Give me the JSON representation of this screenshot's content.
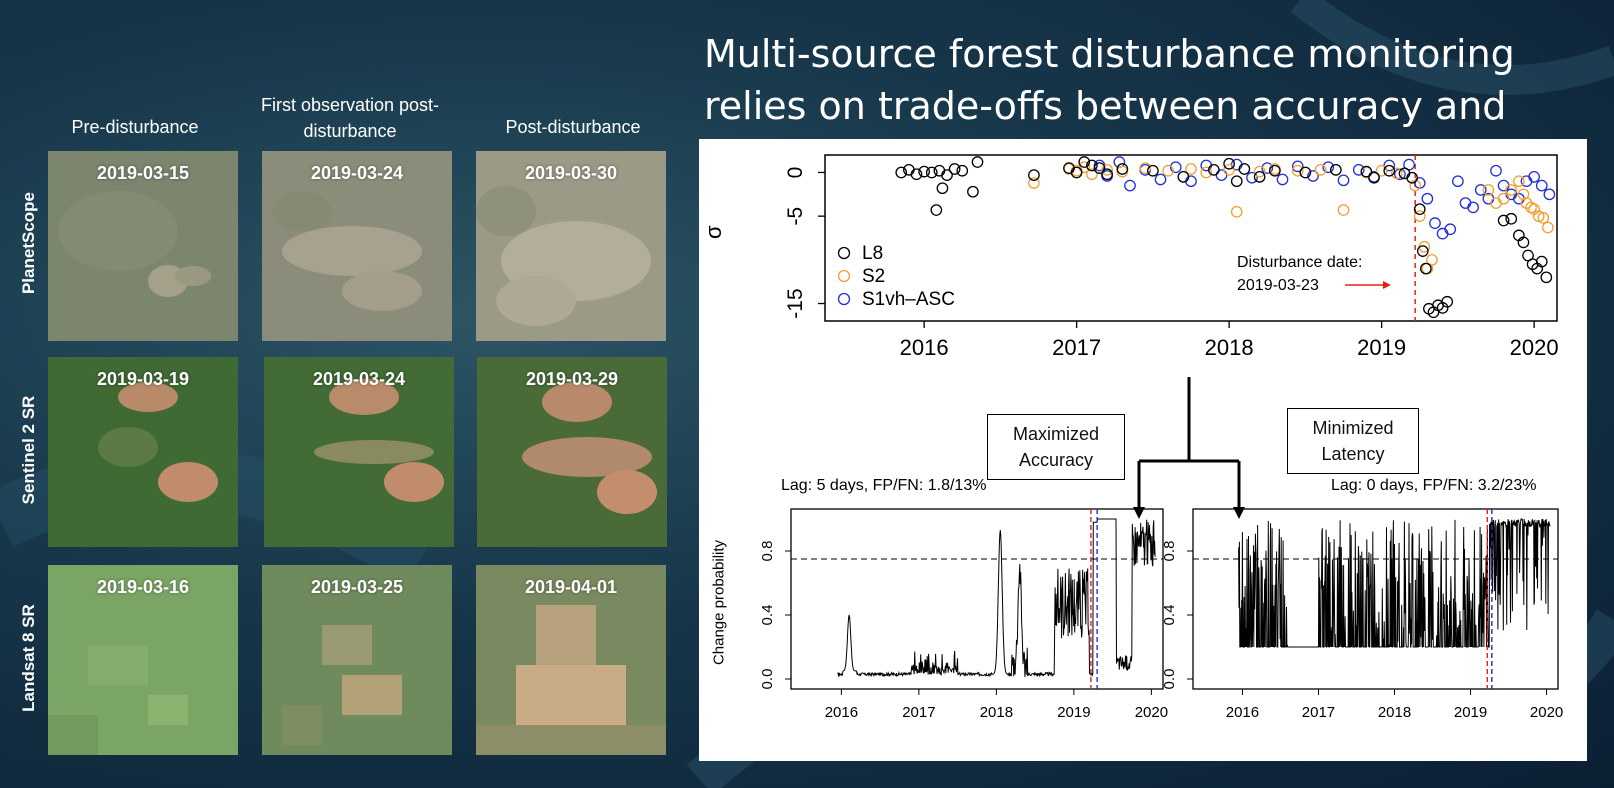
{
  "title": "Multi-source forest disturbance monitoring relies on trade-offs between accuracy and latency",
  "columns": [
    "Pre-disturbance",
    "First observation post-disturbance",
    "Post-disturbance"
  ],
  "rows": [
    "PlanetScope",
    "Sentinel 2 SR",
    "Landsat 8 SR"
  ],
  "tiles": [
    [
      "2019-03-15",
      "2019-03-24",
      "2019-03-30"
    ],
    [
      "2019-03-19",
      "2019-03-24",
      "2019-03-29"
    ],
    [
      "2019-03-16",
      "2019-03-25",
      "2019-04-01"
    ]
  ],
  "colors": {
    "l8": "#000000",
    "s2": "#f0a030",
    "s1": "#1f2fd6",
    "disturbance": "#e0201c"
  },
  "boxes": {
    "accuracy": "Maximized Accuracy",
    "latency": "Minimized Latency"
  },
  "chart_data": [
    {
      "type": "scatter",
      "ylabel": "σ",
      "x_ticks": [
        "2016",
        "2017",
        "2018",
        "2019",
        "2020"
      ],
      "y_ticks": [
        "0",
        "-5",
        "-15"
      ],
      "ylim": [
        -17,
        2
      ],
      "xlim": [
        2015.35,
        2020.15
      ],
      "legend": [
        "L8",
        "S2",
        "S1vh–ASC"
      ],
      "annotation": "Disturbance date: 2019-03-23",
      "disturbance_x": 2019.22,
      "series": [
        {
          "name": "L8",
          "points": [
            [
              2015.85,
              0.0
            ],
            [
              2015.9,
              0.3
            ],
            [
              2015.95,
              -0.2
            ],
            [
              2016.0,
              0.1
            ],
            [
              2016.05,
              0.0
            ],
            [
              2016.1,
              0.2
            ],
            [
              2016.15,
              -0.3
            ],
            [
              2016.2,
              0.4
            ],
            [
              2016.25,
              0.2
            ],
            [
              2016.35,
              1.2
            ],
            [
              2016.08,
              -4.3
            ],
            [
              2016.12,
              -1.8
            ],
            [
              2016.32,
              -2.2
            ],
            [
              2016.72,
              -0.3
            ],
            [
              2016.95,
              0.5
            ],
            [
              2017.0,
              0.0
            ],
            [
              2017.05,
              1.2
            ],
            [
              2017.1,
              0.8
            ],
            [
              2017.15,
              0.5
            ],
            [
              2017.2,
              -0.2
            ],
            [
              2017.3,
              0.4
            ],
            [
              2017.5,
              0.2
            ],
            [
              2017.7,
              -0.5
            ],
            [
              2017.9,
              0.3
            ],
            [
              2018.0,
              1.0
            ],
            [
              2018.05,
              -1.0
            ],
            [
              2018.1,
              0.4
            ],
            [
              2018.2,
              -0.5
            ],
            [
              2018.3,
              0.2
            ],
            [
              2018.5,
              0.0
            ],
            [
              2018.7,
              0.3
            ],
            [
              2018.9,
              0.1
            ],
            [
              2018.95,
              -0.6
            ],
            [
              2019.05,
              0.2
            ],
            [
              2019.15,
              -0.1
            ],
            [
              2019.2,
              -0.6
            ],
            [
              2019.25,
              -4.2
            ],
            [
              2019.27,
              -9.0
            ],
            [
              2019.29,
              -11.0
            ],
            [
              2019.31,
              -15.6
            ],
            [
              2019.34,
              -16.0
            ],
            [
              2019.37,
              -15.2
            ],
            [
              2019.4,
              -15.5
            ],
            [
              2019.43,
              -14.8
            ],
            [
              2019.8,
              -5.5
            ],
            [
              2019.85,
              -5.3
            ],
            [
              2019.9,
              -7.2
            ],
            [
              2019.93,
              -8.0
            ],
            [
              2019.96,
              -9.5
            ],
            [
              2019.99,
              -10.5
            ],
            [
              2020.02,
              -11.0
            ],
            [
              2020.05,
              -10.2
            ],
            [
              2020.08,
              -12.0
            ]
          ]
        },
        {
          "name": "S2",
          "points": [
            [
              2016.72,
              -1.2
            ],
            [
              2016.95,
              0.4
            ],
            [
              2017.0,
              0.2
            ],
            [
              2017.05,
              0.6
            ],
            [
              2017.1,
              -0.2
            ],
            [
              2017.2,
              0.3
            ],
            [
              2017.3,
              0.1
            ],
            [
              2017.45,
              0.5
            ],
            [
              2017.6,
              0.2
            ],
            [
              2017.75,
              0.4
            ],
            [
              2017.85,
              0.0
            ],
            [
              2018.0,
              0.3
            ],
            [
              2018.05,
              -4.5
            ],
            [
              2018.2,
              0.1
            ],
            [
              2018.3,
              0.4
            ],
            [
              2018.45,
              0.2
            ],
            [
              2018.6,
              0.3
            ],
            [
              2018.75,
              -4.3
            ],
            [
              2018.9,
              0.0
            ],
            [
              2019.0,
              0.2
            ],
            [
              2019.1,
              -0.1
            ],
            [
              2019.22,
              -1.5
            ],
            [
              2019.25,
              -5.0
            ],
            [
              2019.28,
              -8.5
            ],
            [
              2019.3,
              -11.0
            ],
            [
              2019.33,
              -10.0
            ],
            [
              2019.7,
              -2.0
            ],
            [
              2019.75,
              -3.5
            ],
            [
              2019.8,
              -3.0
            ],
            [
              2019.85,
              -2.0
            ],
            [
              2019.9,
              -1.0
            ],
            [
              2019.93,
              -2.5
            ],
            [
              2019.95,
              -3.5
            ],
            [
              2019.98,
              -4.0
            ],
            [
              2020.0,
              -4.2
            ],
            [
              2020.03,
              -5.0
            ],
            [
              2020.06,
              -5.2
            ],
            [
              2020.09,
              -6.3
            ]
          ]
        },
        {
          "name": "S1vh–ASC",
          "points": [
            [
              2017.15,
              0.8
            ],
            [
              2017.2,
              -0.4
            ],
            [
              2017.28,
              1.2
            ],
            [
              2017.35,
              -1.5
            ],
            [
              2017.45,
              0.3
            ],
            [
              2017.55,
              -0.8
            ],
            [
              2017.65,
              0.6
            ],
            [
              2017.75,
              -1.0
            ],
            [
              2017.85,
              0.8
            ],
            [
              2017.95,
              -0.3
            ],
            [
              2018.05,
              0.9
            ],
            [
              2018.15,
              -0.6
            ],
            [
              2018.25,
              0.5
            ],
            [
              2018.35,
              -0.8
            ],
            [
              2018.45,
              0.7
            ],
            [
              2018.55,
              -0.4
            ],
            [
              2018.65,
              0.6
            ],
            [
              2018.75,
              -0.9
            ],
            [
              2018.85,
              0.3
            ],
            [
              2018.95,
              -0.5
            ],
            [
              2019.05,
              0.8
            ],
            [
              2019.12,
              -0.2
            ],
            [
              2019.18,
              0.9
            ],
            [
              2019.25,
              -1.2
            ],
            [
              2019.3,
              -3.0
            ],
            [
              2019.35,
              -5.8
            ],
            [
              2019.4,
              -7.0
            ],
            [
              2019.45,
              -6.5
            ],
            [
              2019.5,
              -1.0
            ],
            [
              2019.55,
              -3.5
            ],
            [
              2019.6,
              -4.0
            ],
            [
              2019.65,
              -2.0
            ],
            [
              2019.7,
              -3.0
            ],
            [
              2019.75,
              0.2
            ],
            [
              2019.8,
              -1.5
            ],
            [
              2019.85,
              -2.5
            ],
            [
              2019.9,
              -3.0
            ],
            [
              2019.95,
              -1.0
            ],
            [
              2020.0,
              -0.5
            ],
            [
              2020.05,
              -1.5
            ],
            [
              2020.1,
              -2.5
            ]
          ]
        }
      ]
    },
    {
      "type": "line",
      "label": "Lag: 5 days, FP/FN: 1.8/13%",
      "ylabel": "Change probability",
      "x_ticks": [
        "2016",
        "2017",
        "2018",
        "2019",
        "2020"
      ],
      "y_ticks": [
        "0.0",
        "0.4",
        "0.8"
      ],
      "ylim": [
        0,
        1
      ],
      "threshold": 0.75,
      "disturbance_x": 2019.22,
      "detection_x": 2019.3
    },
    {
      "type": "line",
      "label": "Lag: 0 days, FP/FN: 3.2/23%",
      "x_ticks": [
        "2016",
        "2017",
        "2018",
        "2019",
        "2020"
      ],
      "y_ticks": [
        "0.0",
        "0.4",
        "0.8"
      ],
      "ylim": [
        0,
        1
      ],
      "threshold": 0.75,
      "disturbance_x": 2019.22,
      "detection_x": 2019.28
    }
  ]
}
